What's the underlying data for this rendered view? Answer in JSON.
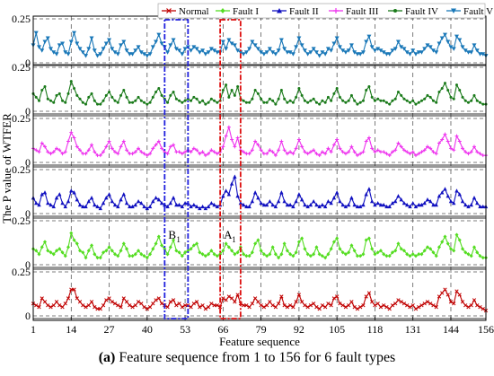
{
  "caption": {
    "bold": "(a)",
    "text": " Feature sequence from 1 to 156 for 6 fault types"
  },
  "chart_data": {
    "type": "line",
    "xlabel": "Feature sequence",
    "ylabel": "The P value of WTFER",
    "xlim": [
      1,
      156
    ],
    "x_ticks": [
      1,
      14,
      27,
      40,
      53,
      66,
      79,
      92,
      105,
      118,
      131,
      144,
      156
    ],
    "ylim": [
      0,
      0.25
    ],
    "y_ticks": [
      0,
      0.25
    ],
    "y_tick_labels": [
      "0",
      "0.25"
    ],
    "grid": "vertical dashed",
    "legend_position": "top",
    "legend": [
      "Normal",
      "Fault I",
      "Fault II",
      "Fault III",
      "Fault IV",
      "Fault V"
    ],
    "colors": {
      "Normal": "#c00000",
      "Fault I": "#55dd22",
      "Fault II": "#1010c0",
      "Fault III": "#ee33ee",
      "Fault IV": "#1a7a1a",
      "Fault V": "#1a78b8"
    },
    "markers": {
      "Normal": "x",
      "Fault I": "diamond",
      "Fault II": "triangle-up",
      "Fault III": "plus",
      "Fault IV": "circle",
      "Fault V": "triangle-down"
    },
    "panel_order_top_to_bottom": [
      "Fault V",
      "Fault IV",
      "Fault III",
      "Fault II",
      "Fault I",
      "Normal"
    ],
    "annotation_boxes": [
      {
        "label": "B",
        "label_sub": "1",
        "x_range": [
          46,
          54
        ],
        "color": "#2020dd"
      },
      {
        "label": "A",
        "label_sub": "1",
        "x_range": [
          65,
          72
        ],
        "color": "#dd1010"
      }
    ],
    "series": [
      {
        "name": "Normal",
        "values": [
          0.07,
          0.06,
          0.05,
          0.1,
          0.08,
          0.06,
          0.05,
          0.06,
          0.08,
          0.06,
          0.05,
          0.07,
          0.1,
          0.15,
          0.15,
          0.1,
          0.08,
          0.06,
          0.05,
          0.06,
          0.08,
          0.05,
          0.04,
          0.04,
          0.06,
          0.09,
          0.1,
          0.08,
          0.07,
          0.06,
          0.05,
          0.1,
          0.08,
          0.06,
          0.05,
          0.06,
          0.08,
          0.07,
          0.05,
          0.04,
          0.05,
          0.07,
          0.09,
          0.1,
          0.07,
          0.06,
          0.05,
          0.08,
          0.09,
          0.06,
          0.07,
          0.05,
          0.06,
          0.06,
          0.05,
          0.07,
          0.08,
          0.05,
          0.06,
          0.04,
          0.05,
          0.07,
          0.06,
          0.06,
          0.05,
          0.1,
          0.09,
          0.11,
          0.1,
          0.08,
          0.12,
          0.07,
          0.06,
          0.06,
          0.05,
          0.07,
          0.1,
          0.08,
          0.06,
          0.05,
          0.06,
          0.08,
          0.06,
          0.05,
          0.07,
          0.11,
          0.06,
          0.05,
          0.06,
          0.05,
          0.08,
          0.12,
          0.08,
          0.06,
          0.05,
          0.06,
          0.07,
          0.05,
          0.04,
          0.06,
          0.05,
          0.07,
          0.06,
          0.1,
          0.11,
          0.07,
          0.06,
          0.05,
          0.06,
          0.08,
          0.05,
          0.04,
          0.05,
          0.06,
          0.11,
          0.13,
          0.08,
          0.06,
          0.07,
          0.05,
          0.06,
          0.05,
          0.04,
          0.06,
          0.07,
          0.09,
          0.08,
          0.07,
          0.06,
          0.05,
          0.06,
          0.04,
          0.05,
          0.06,
          0.07,
          0.08,
          0.07,
          0.06,
          0.05,
          0.11,
          0.13,
          0.15,
          0.12,
          0.08,
          0.07,
          0.14,
          0.12,
          0.08,
          0.06,
          0.05,
          0.06,
          0.09,
          0.06,
          0.05,
          0.04,
          0.03
        ]
      },
      {
        "name": "Fault I",
        "values": [
          0.09,
          0.08,
          0.06,
          0.1,
          0.13,
          0.08,
          0.07,
          0.06,
          0.08,
          0.09,
          0.07,
          0.05,
          0.1,
          0.18,
          0.14,
          0.12,
          0.08,
          0.07,
          0.04,
          0.08,
          0.11,
          0.06,
          0.04,
          0.04,
          0.07,
          0.08,
          0.1,
          0.08,
          0.06,
          0.05,
          0.08,
          0.12,
          0.09,
          0.05,
          0.05,
          0.06,
          0.08,
          0.06,
          0.05,
          0.04,
          0.06,
          0.09,
          0.12,
          0.16,
          0.11,
          0.09,
          0.06,
          0.1,
          0.14,
          0.08,
          0.07,
          0.05,
          0.07,
          0.08,
          0.09,
          0.11,
          0.12,
          0.07,
          0.06,
          0.05,
          0.06,
          0.08,
          0.06,
          0.05,
          0.06,
          0.08,
          0.12,
          0.1,
          0.08,
          0.06,
          0.07,
          0.1,
          0.06,
          0.05,
          0.05,
          0.07,
          0.12,
          0.14,
          0.08,
          0.06,
          0.05,
          0.06,
          0.1,
          0.06,
          0.04,
          0.06,
          0.12,
          0.08,
          0.06,
          0.05,
          0.07,
          0.13,
          0.15,
          0.09,
          0.06,
          0.05,
          0.06,
          0.1,
          0.06,
          0.05,
          0.04,
          0.06,
          0.09,
          0.13,
          0.15,
          0.09,
          0.07,
          0.06,
          0.07,
          0.11,
          0.08,
          0.05,
          0.05,
          0.06,
          0.14,
          0.15,
          0.09,
          0.06,
          0.07,
          0.08,
          0.06,
          0.05,
          0.05,
          0.07,
          0.08,
          0.12,
          0.09,
          0.08,
          0.06,
          0.05,
          0.06,
          0.05,
          0.06,
          0.06,
          0.08,
          0.1,
          0.09,
          0.07,
          0.05,
          0.1,
          0.13,
          0.16,
          0.12,
          0.09,
          0.08,
          0.17,
          0.14,
          0.09,
          0.07,
          0.06,
          0.05,
          0.1,
          0.07,
          0.05,
          0.04,
          0.04
        ]
      },
      {
        "name": "Fault II",
        "values": [
          0.09,
          0.06,
          0.05,
          0.11,
          0.12,
          0.06,
          0.05,
          0.04,
          0.09,
          0.11,
          0.06,
          0.04,
          0.07,
          0.13,
          0.12,
          0.08,
          0.05,
          0.04,
          0.04,
          0.07,
          0.09,
          0.05,
          0.04,
          0.03,
          0.06,
          0.09,
          0.11,
          0.07,
          0.05,
          0.04,
          0.08,
          0.11,
          0.06,
          0.04,
          0.04,
          0.05,
          0.07,
          0.06,
          0.04,
          0.03,
          0.04,
          0.07,
          0.09,
          0.08,
          0.06,
          0.05,
          0.04,
          0.06,
          0.09,
          0.05,
          0.05,
          0.04,
          0.06,
          0.06,
          0.04,
          0.05,
          0.04,
          0.03,
          0.04,
          0.03,
          0.04,
          0.06,
          0.05,
          0.04,
          0.05,
          0.1,
          0.13,
          0.11,
          0.17,
          0.21,
          0.1,
          0.06,
          0.05,
          0.04,
          0.04,
          0.07,
          0.12,
          0.09,
          0.06,
          0.05,
          0.05,
          0.07,
          0.05,
          0.04,
          0.07,
          0.12,
          0.07,
          0.05,
          0.05,
          0.04,
          0.07,
          0.11,
          0.08,
          0.05,
          0.04,
          0.05,
          0.07,
          0.05,
          0.04,
          0.05,
          0.04,
          0.07,
          0.06,
          0.09,
          0.12,
          0.07,
          0.05,
          0.04,
          0.05,
          0.09,
          0.05,
          0.04,
          0.04,
          0.05,
          0.11,
          0.14,
          0.07,
          0.05,
          0.06,
          0.05,
          0.05,
          0.04,
          0.04,
          0.06,
          0.07,
          0.1,
          0.08,
          0.06,
          0.05,
          0.04,
          0.06,
          0.04,
          0.05,
          0.05,
          0.06,
          0.08,
          0.07,
          0.05,
          0.05,
          0.1,
          0.12,
          0.14,
          0.1,
          0.07,
          0.06,
          0.13,
          0.11,
          0.07,
          0.05,
          0.04,
          0.05,
          0.09,
          0.06,
          0.04,
          0.04,
          0.04
        ]
      },
      {
        "name": "Fault III",
        "values": [
          0.08,
          0.07,
          0.06,
          0.11,
          0.09,
          0.06,
          0.05,
          0.06,
          0.08,
          0.07,
          0.05,
          0.06,
          0.12,
          0.17,
          0.14,
          0.09,
          0.07,
          0.05,
          0.05,
          0.07,
          0.1,
          0.06,
          0.04,
          0.04,
          0.06,
          0.09,
          0.12,
          0.08,
          0.06,
          0.05,
          0.09,
          0.12,
          0.07,
          0.05,
          0.05,
          0.06,
          0.08,
          0.06,
          0.05,
          0.04,
          0.05,
          0.08,
          0.1,
          0.12,
          0.08,
          0.06,
          0.05,
          0.09,
          0.1,
          0.06,
          0.06,
          0.05,
          0.06,
          0.07,
          0.06,
          0.08,
          0.07,
          0.05,
          0.06,
          0.04,
          0.05,
          0.07,
          0.06,
          0.05,
          0.06,
          0.09,
          0.15,
          0.2,
          0.13,
          0.09,
          0.14,
          0.07,
          0.06,
          0.05,
          0.05,
          0.07,
          0.12,
          0.1,
          0.07,
          0.05,
          0.05,
          0.07,
          0.06,
          0.04,
          0.07,
          0.12,
          0.07,
          0.05,
          0.06,
          0.05,
          0.08,
          0.13,
          0.09,
          0.06,
          0.05,
          0.06,
          0.07,
          0.05,
          0.04,
          0.06,
          0.05,
          0.08,
          0.06,
          0.1,
          0.13,
          0.08,
          0.06,
          0.05,
          0.06,
          0.09,
          0.06,
          0.04,
          0.05,
          0.06,
          0.12,
          0.14,
          0.08,
          0.06,
          0.07,
          0.06,
          0.06,
          0.05,
          0.04,
          0.06,
          0.07,
          0.11,
          0.09,
          0.07,
          0.06,
          0.05,
          0.06,
          0.04,
          0.05,
          0.06,
          0.07,
          0.09,
          0.08,
          0.06,
          0.05,
          0.11,
          0.13,
          0.16,
          0.12,
          0.08,
          0.07,
          0.15,
          0.12,
          0.08,
          0.06,
          0.05,
          0.06,
          0.09,
          0.06,
          0.05,
          0.04,
          0.04
        ]
      },
      {
        "name": "Fault IV",
        "values": [
          0.1,
          0.08,
          0.06,
          0.12,
          0.14,
          0.07,
          0.06,
          0.05,
          0.09,
          0.1,
          0.06,
          0.05,
          0.1,
          0.17,
          0.13,
          0.09,
          0.07,
          0.05,
          0.04,
          0.08,
          0.1,
          0.06,
          0.04,
          0.04,
          0.06,
          0.09,
          0.11,
          0.08,
          0.06,
          0.05,
          0.09,
          0.12,
          0.08,
          0.05,
          0.05,
          0.06,
          0.08,
          0.06,
          0.05,
          0.04,
          0.05,
          0.08,
          0.11,
          0.13,
          0.09,
          0.07,
          0.05,
          0.09,
          0.11,
          0.07,
          0.06,
          0.05,
          0.06,
          0.07,
          0.06,
          0.08,
          0.07,
          0.05,
          0.06,
          0.04,
          0.05,
          0.07,
          0.06,
          0.05,
          0.06,
          0.12,
          0.15,
          0.08,
          0.12,
          0.09,
          0.14,
          0.07,
          0.06,
          0.05,
          0.05,
          0.07,
          0.12,
          0.1,
          0.07,
          0.05,
          0.05,
          0.07,
          0.06,
          0.04,
          0.07,
          0.12,
          0.07,
          0.05,
          0.06,
          0.05,
          0.08,
          0.13,
          0.09,
          0.06,
          0.05,
          0.06,
          0.07,
          0.05,
          0.04,
          0.06,
          0.05,
          0.08,
          0.06,
          0.1,
          0.13,
          0.08,
          0.06,
          0.05,
          0.06,
          0.09,
          0.06,
          0.04,
          0.05,
          0.06,
          0.12,
          0.14,
          0.08,
          0.06,
          0.07,
          0.06,
          0.06,
          0.05,
          0.04,
          0.06,
          0.07,
          0.11,
          0.09,
          0.07,
          0.06,
          0.05,
          0.06,
          0.04,
          0.05,
          0.06,
          0.07,
          0.09,
          0.08,
          0.06,
          0.05,
          0.11,
          0.13,
          0.16,
          0.12,
          0.08,
          0.07,
          0.15,
          0.12,
          0.08,
          0.06,
          0.05,
          0.06,
          0.09,
          0.06,
          0.05,
          0.04,
          0.04
        ]
      },
      {
        "name": "Fault V",
        "values": [
          0.1,
          0.17,
          0.09,
          0.07,
          0.12,
          0.14,
          0.08,
          0.06,
          0.05,
          0.1,
          0.11,
          0.06,
          0.05,
          0.12,
          0.17,
          0.11,
          0.08,
          0.06,
          0.04,
          0.08,
          0.14,
          0.07,
          0.04,
          0.05,
          0.08,
          0.11,
          0.13,
          0.08,
          0.06,
          0.05,
          0.1,
          0.12,
          0.07,
          0.05,
          0.05,
          0.07,
          0.09,
          0.06,
          0.05,
          0.04,
          0.05,
          0.09,
          0.12,
          0.16,
          0.11,
          0.09,
          0.06,
          0.1,
          0.13,
          0.08,
          0.07,
          0.05,
          0.08,
          0.09,
          0.07,
          0.09,
          0.08,
          0.06,
          0.07,
          0.05,
          0.06,
          0.08,
          0.07,
          0.06,
          0.06,
          0.12,
          0.08,
          0.13,
          0.11,
          0.1,
          0.07,
          0.06,
          0.05,
          0.06,
          0.08,
          0.12,
          0.1,
          0.08,
          0.06,
          0.05,
          0.06,
          0.08,
          0.06,
          0.05,
          0.07,
          0.13,
          0.08,
          0.06,
          0.06,
          0.05,
          0.09,
          0.14,
          0.1,
          0.07,
          0.05,
          0.06,
          0.08,
          0.06,
          0.04,
          0.06,
          0.05,
          0.08,
          0.07,
          0.11,
          0.14,
          0.09,
          0.07,
          0.06,
          0.07,
          0.1,
          0.06,
          0.05,
          0.05,
          0.06,
          0.12,
          0.15,
          0.09,
          0.07,
          0.08,
          0.07,
          0.06,
          0.05,
          0.05,
          0.07,
          0.08,
          0.12,
          0.09,
          0.08,
          0.06,
          0.05,
          0.07,
          0.05,
          0.06,
          0.06,
          0.08,
          0.1,
          0.09,
          0.07,
          0.06,
          0.11,
          0.14,
          0.16,
          0.12,
          0.09,
          0.08,
          0.15,
          0.13,
          0.09,
          0.07,
          0.06,
          0.06,
          0.1,
          0.07,
          0.05,
          0.05,
          0.04
        ]
      }
    ]
  }
}
